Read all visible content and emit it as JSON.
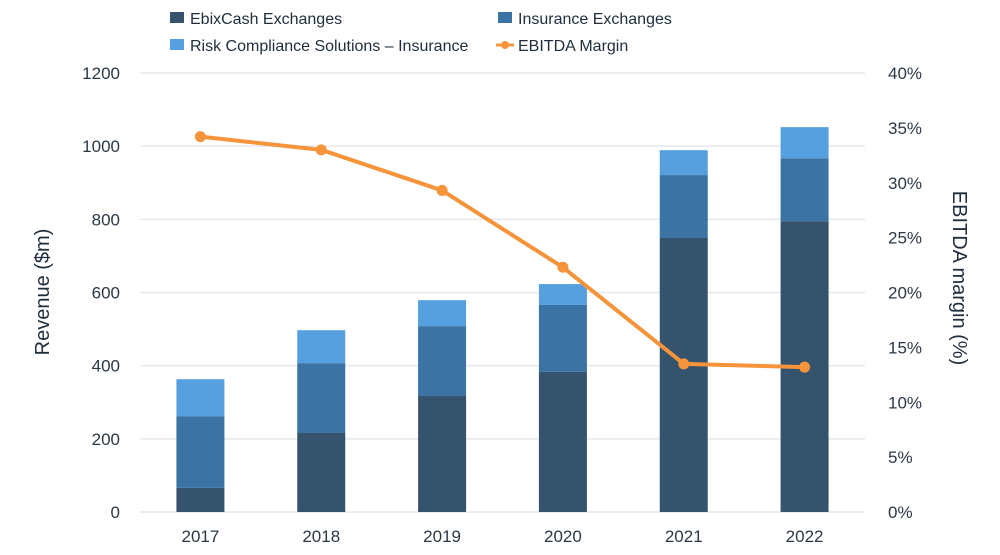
{
  "chart_data": {
    "type": "bar",
    "stacked": true,
    "title": "",
    "categories": [
      "2017",
      "2018",
      "2019",
      "2020",
      "2021",
      "2022"
    ],
    "series": [
      {
        "name": "EbixCash Exchanges",
        "type": "bar",
        "axis": "left",
        "color": "#36536e",
        "values": [
          66,
          216,
          317,
          383,
          749,
          795
        ]
      },
      {
        "name": "Insurance Exchanges",
        "type": "bar",
        "axis": "left",
        "color": "#3b73a5",
        "values": [
          196,
          191,
          191,
          183,
          172,
          172
        ]
      },
      {
        "name": "Risk Compliance Solutions – Insurance",
        "type": "bar",
        "axis": "left",
        "color": "#56a0e0",
        "values": [
          101,
          90,
          71,
          57,
          68,
          85
        ]
      },
      {
        "name": "EBITDA Margin",
        "type": "line",
        "axis": "right",
        "color": "#f5943a",
        "values": [
          34.2,
          33.0,
          29.3,
          22.3,
          13.5,
          13.2
        ]
      }
    ],
    "ylabel": "Revenue ($m)",
    "ylim": [
      0,
      1200
    ],
    "yticks": [
      "0",
      "200",
      "400",
      "600",
      "800",
      "1000",
      "1200"
    ],
    "y2label": "EBITDA margin (%)",
    "y2lim": [
      0,
      40
    ],
    "y2ticks": [
      "0%",
      "5%",
      "10%",
      "15%",
      "20%",
      "25%",
      "30%",
      "35%",
      "40%"
    ],
    "xlabel": "",
    "grid": true,
    "legend_position": "top"
  }
}
